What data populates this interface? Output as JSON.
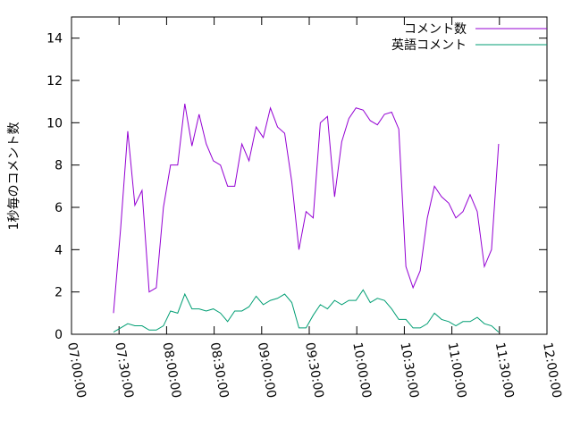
{
  "chart_data": {
    "type": "line",
    "ylabel": "1秒毎のコメント数",
    "x": [
      "07:26:30",
      "07:31:00",
      "07:35:30",
      "07:40:00",
      "07:44:30",
      "07:49:00",
      "07:53:30",
      "07:58:00",
      "08:02:30",
      "08:07:00",
      "08:11:30",
      "08:16:00",
      "08:20:30",
      "08:25:00",
      "08:29:30",
      "08:34:00",
      "08:38:30",
      "08:43:00",
      "08:47:30",
      "08:52:00",
      "08:56:30",
      "09:01:00",
      "09:05:30",
      "09:10:00",
      "09:14:30",
      "09:19:00",
      "09:23:30",
      "09:28:00",
      "09:32:30",
      "09:37:00",
      "09:41:30",
      "09:46:00",
      "09:50:30",
      "09:55:00",
      "09:59:30",
      "10:04:00",
      "10:08:30",
      "10:13:00",
      "10:17:30",
      "10:22:00",
      "10:26:30",
      "10:31:00",
      "10:35:30",
      "10:40:00",
      "10:44:30",
      "10:49:00",
      "10:53:30",
      "10:58:00",
      "11:02:30",
      "11:07:00",
      "11:11:30",
      "11:16:00",
      "11:20:30",
      "11:25:00",
      "11:29:30"
    ],
    "series": [
      {
        "name": "コメント数",
        "color": "#9400d3",
        "values": [
          1.0,
          5.0,
          9.6,
          6.1,
          6.8,
          2.0,
          2.2,
          6.0,
          8.0,
          8.0,
          10.9,
          8.9,
          10.4,
          9.0,
          8.2,
          8.0,
          7.0,
          7.0,
          9.0,
          8.2,
          9.8,
          9.3,
          10.7,
          9.8,
          9.5,
          7.2,
          4.0,
          5.8,
          5.5,
          10.0,
          10.3,
          6.5,
          9.1,
          10.2,
          10.7,
          10.6,
          10.1,
          9.9,
          10.4,
          10.5,
          9.7,
          3.2,
          2.2,
          3.0,
          5.5,
          7.0,
          6.5,
          6.2,
          5.5,
          5.8,
          6.6,
          5.8,
          3.2,
          4.0,
          9.0
        ]
      },
      {
        "name": "英語コメント",
        "color": "#009e73",
        "values": [
          0.1,
          0.3,
          0.5,
          0.4,
          0.4,
          0.2,
          0.2,
          0.4,
          1.1,
          1.0,
          1.9,
          1.2,
          1.2,
          1.1,
          1.2,
          1.0,
          0.6,
          1.1,
          1.1,
          1.3,
          1.8,
          1.4,
          1.6,
          1.7,
          1.9,
          1.5,
          0.3,
          0.3,
          0.9,
          1.4,
          1.2,
          1.6,
          1.4,
          1.6,
          1.6,
          2.1,
          1.5,
          1.7,
          1.6,
          1.2,
          0.7,
          0.7,
          0.3,
          0.3,
          0.5,
          1.0,
          0.7,
          0.6,
          0.4,
          0.6,
          0.6,
          0.8,
          0.5,
          0.4,
          0.1
        ]
      }
    ],
    "xlim": [
      "07:00:00",
      "12:00:00"
    ],
    "xticks": [
      "07:00:00",
      "07:30:00",
      "08:00:00",
      "08:30:00",
      "09:00:00",
      "09:30:00",
      "10:00:00",
      "10:30:00",
      "11:00:00",
      "11:30:00",
      "12:00:00"
    ],
    "ylim": [
      0,
      15
    ],
    "yticks": [
      0,
      2,
      4,
      6,
      8,
      10,
      12,
      14
    ],
    "legend": "top-right"
  }
}
